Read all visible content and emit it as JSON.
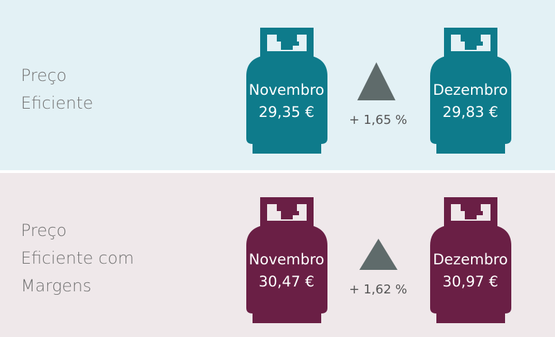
{
  "panels": [
    {
      "label": [
        "Preço",
        "Eficiente"
      ],
      "from": {
        "month": "Novembro",
        "price": "29,35 €"
      },
      "change": "+ 1,65 %",
      "to": {
        "month": "Dezembro",
        "price": "29,83 €"
      }
    },
    {
      "label": [
        "Preço",
        "Eficiente com",
        "Margens"
      ],
      "from": {
        "month": "Novembro",
        "price": "30,47 €"
      },
      "change": "+ 1,62 %",
      "to": {
        "month": "Dezembro",
        "price": "30,97 €"
      }
    }
  ]
}
